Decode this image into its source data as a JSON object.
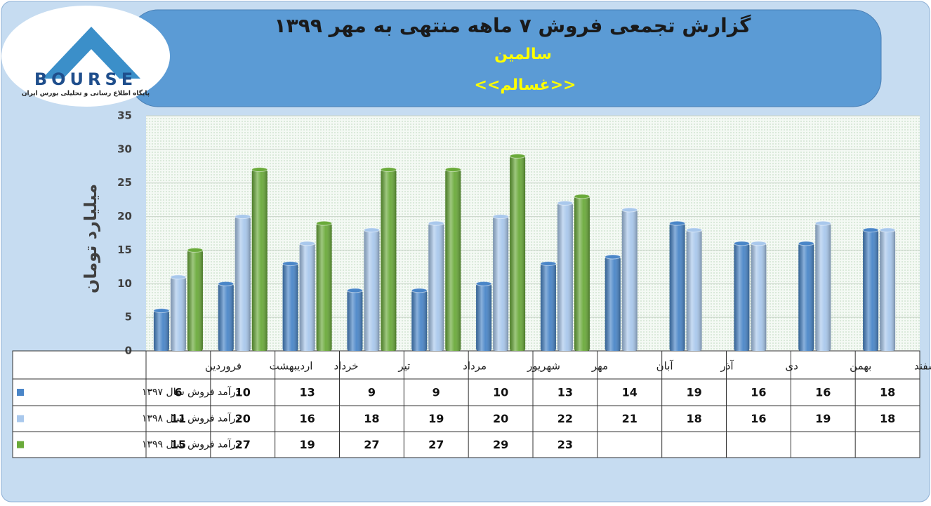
{
  "logo": {
    "name": "BOURSE",
    "tagline": "پایگاه اطلاع رسانی و تحلیلی بورس ایران"
  },
  "chart_data": {
    "type": "bar",
    "title": "گزارش تجمعی فروش ۷ ماهه منتهی به مهر ۱۳۹۹",
    "subtitle": "سالمین",
    "annotation": "<<غسالم>>",
    "y_label": "میلیارد تومان",
    "categories": [
      "فروردین",
      "اردیبهشت",
      "خرداد",
      "تیر",
      "مرداد",
      "شهریور",
      "مهر",
      "آبان",
      "آذر",
      "دی",
      "بهمن",
      "اسفند"
    ],
    "series": [
      {
        "name": "درآمد فروش سال ۱۳۹۷",
        "color": "#4a86c8",
        "values": [
          6,
          10,
          13,
          9,
          9,
          10,
          13,
          14,
          19,
          16,
          16,
          18
        ]
      },
      {
        "name": "درآمد فروش سال ۱۳۹۸",
        "color": "#a9c8ec",
        "values": [
          11,
          20,
          16,
          18,
          19,
          20,
          22,
          21,
          18,
          16,
          19,
          18
        ]
      },
      {
        "name": "درآمد فروش سال ۱۳۹۹",
        "color": "#6aaa3a",
        "values": [
          15,
          27,
          19,
          27,
          27,
          29,
          23,
          null,
          null,
          null,
          null,
          null
        ]
      }
    ],
    "ylim": [
      0,
      35
    ],
    "yticks": [
      0,
      5,
      10,
      15,
      20,
      25,
      30,
      35
    ],
    "grid": true
  }
}
